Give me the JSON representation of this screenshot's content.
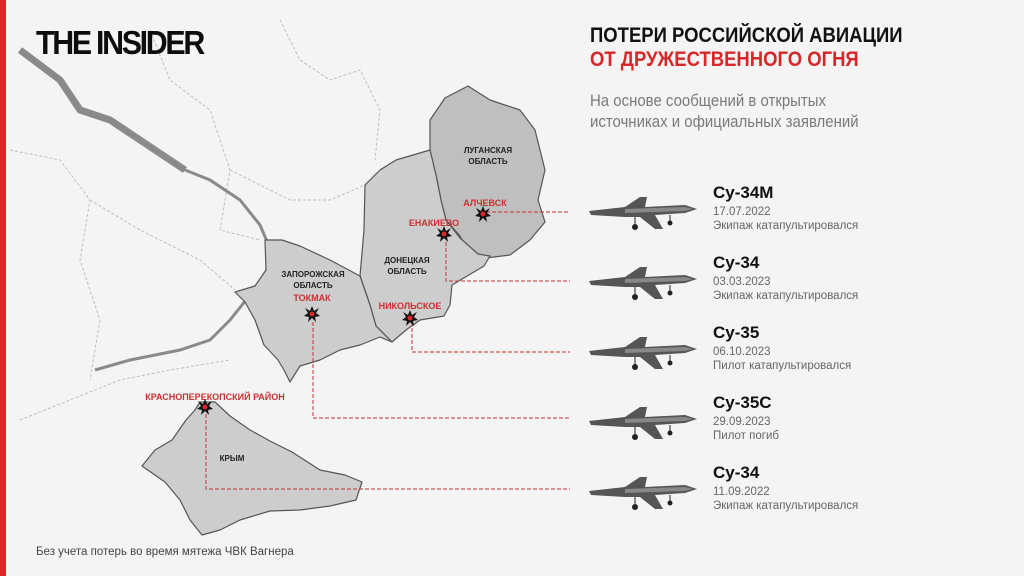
{
  "logo": "THE INSIDER",
  "title": {
    "line1": "ПОТЕРИ РОССИЙСКОЙ АВИАЦИИ",
    "line2": "ОТ ДРУЖЕСТВЕННОГО ОГНЯ"
  },
  "subtitle": {
    "line1": "На основе сообщений в открытых",
    "line2": "источниках и официальных заявлений"
  },
  "colors": {
    "accent": "#d62828",
    "region_fill": "#c9c9c9",
    "background": "#f4f4f4"
  },
  "regions": [
    {
      "line1": "ЛУГАНСКАЯ",
      "line2": "ОБЛАСТЬ"
    },
    {
      "line1": "ДОНЕЦКАЯ",
      "line2": "ОБЛАСТЬ"
    },
    {
      "line1": "ЗАПОРОЖСКАЯ",
      "line2": "ОБЛАСТЬ"
    },
    {
      "line1": "КРЫМ",
      "line2": ""
    }
  ],
  "places": [
    {
      "label": "АЛЧЕВСК",
      "icon": "explosion-icon"
    },
    {
      "label": "ЕНАКИЕВО",
      "icon": "explosion-icon"
    },
    {
      "label": "НИКОЛЬСКОЕ",
      "icon": "explosion-icon"
    },
    {
      "label": "ТОКМАК",
      "icon": "explosion-icon"
    },
    {
      "label": "КРАСНОПЕРЕКОПСКИЙ РАЙОН",
      "icon": "explosion-icon"
    }
  ],
  "losses": [
    {
      "aircraft": "Су-34М",
      "date": "17.07.2022",
      "outcome": "Экипаж катапультировался"
    },
    {
      "aircraft": "Су-34",
      "date": "03.03.2023",
      "outcome": "Экипаж катапультировался"
    },
    {
      "aircraft": "Су-35",
      "date": "06.10.2023",
      "outcome": "Пилот катапультировался"
    },
    {
      "aircraft": "Су-35С",
      "date": "29.09.2023",
      "outcome": "Пилот погиб"
    },
    {
      "aircraft": "Су-34",
      "date": "11.09.2022",
      "outcome": "Экипаж катапультировался"
    }
  ],
  "footer": "Без учета потерь во время мятежа ЧВК Вагнера"
}
